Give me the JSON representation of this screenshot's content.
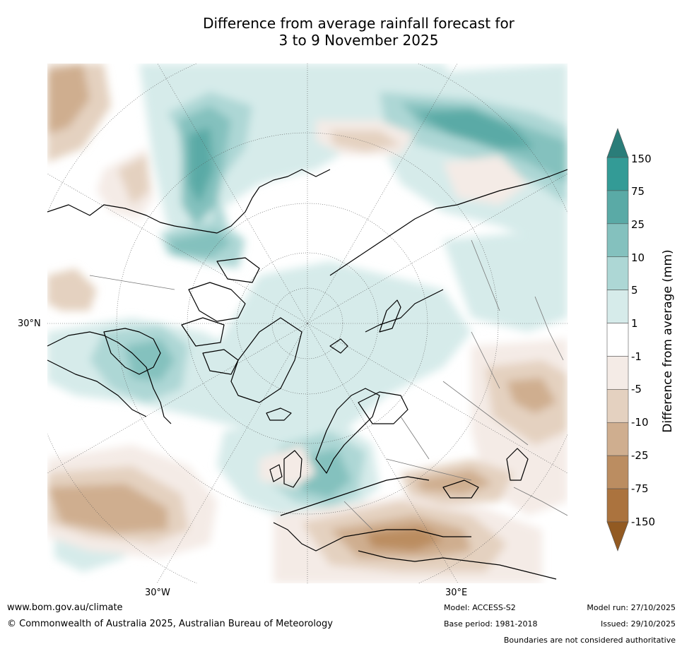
{
  "title": {
    "line1": "Difference from average rainfall forecast for",
    "line2": "3 to 9 November 2025"
  },
  "map": {
    "latitude_label": "30°N",
    "longitude_labels": {
      "west": "30°W",
      "east": "30°E"
    }
  },
  "colorbar": {
    "label": "Difference from average (mm)",
    "ticks": [
      "150",
      "75",
      "25",
      "10",
      "5",
      "1",
      "-1",
      "-5",
      "-10",
      "-25",
      "-75",
      "-150"
    ],
    "colors": {
      "above_150": "#2a7d79",
      "75_to_150": "#339b96",
      "25_to_75": "#5aaaa6",
      "10_to_25": "#84c1be",
      "5_to_10": "#add7d5",
      "1_to_5": "#d6ebea",
      "neutral": "#ffffff",
      "minus5_to_minus1": "#f4ebe6",
      "minus10_to_minus5": "#e4d1c0",
      "minus25_to_minus10": "#cfae8f",
      "minus75_to_minus25": "#bb8d61",
      "minus150_to_minus75": "#ab733e",
      "below_minus150": "#925a22"
    }
  },
  "footer": {
    "website": "www.bom.gov.au/climate",
    "copyright": "© Commonwealth of Australia 2025, Australian Bureau of Meteorology",
    "model": "Model: ACCESS-S2",
    "base_period": "Base period: 1981-2018",
    "model_run": "Model run: 27/10/2025",
    "issued": "Issued: 29/10/2025",
    "disclaimer": "Boundaries are not considered authoritative"
  }
}
